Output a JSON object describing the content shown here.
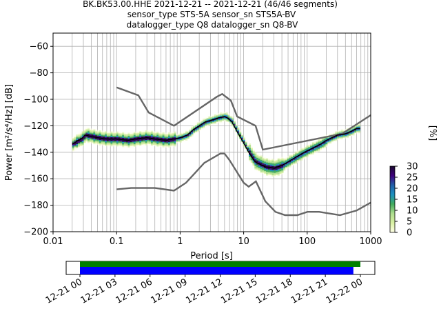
{
  "chart_data": [
    {
      "type": "heatmap",
      "title_lines": [
        "BK.BK53.00.HHE   2021-12-21 -- 2021-12-21  (46/46 segments)",
        "sensor_type STS-5A sensor_sn STS5A-BV",
        "datalogger_type Q8 datalogger_sn Q8-BV"
      ],
      "xlabel": "Period [s]",
      "ylabel": "Power [m²/s⁴/Hz] [dB]",
      "xscale": "log",
      "xlim": [
        0.01,
        1000
      ],
      "ylim": [
        -200,
        -50
      ],
      "grid": true,
      "x_tick_labels": [
        "0.01",
        "0.1",
        "1",
        "10",
        "100",
        "1000"
      ],
      "x_tick_values": [
        0.01,
        0.1,
        1,
        10,
        100,
        1000
      ],
      "y_tick_labels": [
        "−60",
        "−80",
        "−100",
        "−120",
        "−140",
        "−160",
        "−180",
        "−200"
      ],
      "y_tick_values": [
        -60,
        -80,
        -100,
        -120,
        -140,
        -160,
        -180,
        -200
      ],
      "colorbar": {
        "label": "[%]",
        "range": [
          0,
          30
        ],
        "tick_labels": [
          "0",
          "5",
          "10",
          "15",
          "20",
          "25",
          "30"
        ],
        "tick_values": [
          0,
          5,
          10,
          15,
          20,
          25,
          30
        ],
        "colors": [
          "#ffffe5",
          "#d9f0a3",
          "#addd8e",
          "#41ab5d",
          "#1d91c0",
          "#225ea8",
          "#3f007d",
          "#1a0a2e"
        ]
      },
      "model_curves": {
        "color": "#666666",
        "high_noise_model": [
          [
            0.1,
            -91
          ],
          [
            0.22,
            -97
          ],
          [
            0.32,
            -110
          ],
          [
            0.8,
            -120
          ],
          [
            3.8,
            -98
          ],
          [
            4.6,
            -96
          ],
          [
            6.3,
            -101
          ],
          [
            7.9,
            -113
          ],
          [
            15.4,
            -120
          ],
          [
            20,
            -138
          ],
          [
            354.8,
            -126
          ],
          [
            1000,
            -112
          ]
        ],
        "low_noise_model": [
          [
            0.1,
            -168
          ],
          [
            0.17,
            -167
          ],
          [
            0.4,
            -167
          ],
          [
            0.8,
            -169
          ],
          [
            1.24,
            -163
          ],
          [
            2.4,
            -148
          ],
          [
            4.3,
            -141
          ],
          [
            5.0,
            -141
          ],
          [
            6.0,
            -146
          ],
          [
            10,
            -163
          ],
          [
            12,
            -166
          ],
          [
            15.6,
            -162
          ],
          [
            21.9,
            -177
          ],
          [
            31.6,
            -185
          ],
          [
            45,
            -187.5
          ],
          [
            70,
            -187.5
          ],
          [
            101,
            -185
          ],
          [
            154,
            -185
          ],
          [
            328,
            -187.5
          ],
          [
            600,
            -184
          ],
          [
            1000,
            -178
          ]
        ]
      },
      "mean_psd": {
        "color": "#000000",
        "points": [
          [
            0.02,
            -134
          ],
          [
            0.025,
            -131
          ],
          [
            0.028,
            -130
          ],
          [
            0.032,
            -127
          ],
          [
            0.04,
            -128
          ],
          [
            0.05,
            -129
          ],
          [
            0.07,
            -130
          ],
          [
            0.1,
            -130
          ],
          [
            0.15,
            -131
          ],
          [
            0.2,
            -130
          ],
          [
            0.3,
            -129
          ],
          [
            0.4,
            -130
          ],
          [
            0.6,
            -131
          ],
          [
            0.8,
            -130
          ],
          [
            1,
            -129
          ],
          [
            1.3,
            -127
          ],
          [
            1.6,
            -123
          ],
          [
            2,
            -120
          ],
          [
            2.5,
            -117
          ],
          [
            3,
            -116
          ],
          [
            4,
            -114
          ],
          [
            5,
            -113
          ],
          [
            5.5,
            -114
          ],
          [
            6.5,
            -117
          ],
          [
            8,
            -125
          ],
          [
            10,
            -133
          ],
          [
            12,
            -140
          ],
          [
            15,
            -147
          ],
          [
            18,
            -149
          ],
          [
            22,
            -151
          ],
          [
            30,
            -152
          ],
          [
            40,
            -150
          ],
          [
            55,
            -146
          ],
          [
            70,
            -143
          ],
          [
            90,
            -140
          ],
          [
            120,
            -137
          ],
          [
            160,
            -134
          ],
          [
            200,
            -131
          ],
          [
            300,
            -127
          ],
          [
            400,
            -126
          ],
          [
            500,
            -124
          ],
          [
            600,
            -122
          ],
          [
            680,
            -122
          ]
        ]
      },
      "segments": {
        "total": 46,
        "time_start": "2021-12-21 00",
        "time_end": "2021-12-22 00",
        "available_data_color": "#008000",
        "used_segments_color": "#0000ff",
        "available_coverage": [
          0.0,
          1.0
        ],
        "used_coverage": [
          0.0,
          0.975
        ],
        "time_tick_labels": [
          "12-21 00",
          "12-21 03",
          "12-21 06",
          "12-21 09",
          "12-21 12",
          "12-21 15",
          "12-21 18",
          "12-21 21",
          "12-22 00"
        ],
        "time_tick_hours": [
          0,
          3,
          6,
          9,
          12,
          15,
          18,
          21,
          24
        ]
      }
    }
  ]
}
